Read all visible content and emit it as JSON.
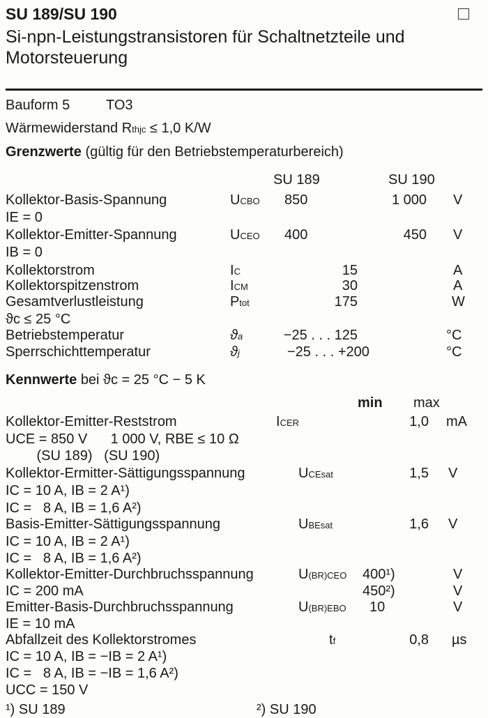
{
  "header": {
    "title": "SU 189/SU 190",
    "subtitle_1": "Si-npn-Leistungstransistoren für Schaltnetzteile und",
    "subtitle_2": "Motorsteuerung"
  },
  "intro": {
    "bauform": "Bauform 5",
    "package": "TO3",
    "thermal_label": "Wärmewiderstand R",
    "thermal_sub": "thjc",
    "thermal_value": "≤ 1,0 K/W"
  },
  "limits": {
    "heading": "Grenzwerte",
    "heading_note": "(gültig für den Betriebstemperaturbereich)",
    "col_su189": "SU 189",
    "col_su190": "SU 190",
    "rows": [
      {
        "name": "Kollektor-Basis-Spannung",
        "cond": "IE = 0",
        "sym": "U",
        "sub": "CBO",
        "v189": "850",
        "v190": "1 000",
        "unit": "V"
      },
      {
        "name": "Kollektor-Emitter-Spannung",
        "cond": "IB = 0",
        "sym": "U",
        "sub": "CEO",
        "v189": "400",
        "v190": "450",
        "unit": "V"
      },
      {
        "name": "Kollektorstrom",
        "sym": "I",
        "sub": "C",
        "value": "15",
        "unit": "A"
      },
      {
        "name": "Kollektorspitzenstrom",
        "sym": "I",
        "sub": "CM",
        "value": "30",
        "unit": "A"
      },
      {
        "name": "Gesamtverlustleistung",
        "cond": "ϑc ≤ 25 °C",
        "sym": "P",
        "sub": "tot",
        "value": "175",
        "unit": "W"
      },
      {
        "name": "Betriebstemperatur",
        "sym": "ϑ",
        "sub": "a",
        "value": "−25 . . . 125",
        "unit": "°C"
      },
      {
        "name": "Sperrschichttemperatur",
        "sym": "ϑ",
        "sub": "j",
        "value": "−25 . . . +200",
        "unit": "°C"
      }
    ]
  },
  "characteristics": {
    "heading": "Kennwerte",
    "heading_note": "bei ϑc = 25 °C − 5 K",
    "col_min": "min",
    "col_max": "max",
    "rows": [
      {
        "name": "Kollektor-Emitter-Reststrom",
        "sym": "I",
        "sub": "CER",
        "max": "1,0",
        "unit": "mA",
        "cond": [
          "UCE = 850 V      1 000 V, RBE ≤ 10 Ω",
          "        (SU 189)   (SU 190)"
        ]
      },
      {
        "name": "Kollektor-Ermitter-Sättigungsspannung",
        "sym": "U",
        "sub": "CEsat",
        "max": "1,5",
        "unit": "V",
        "cond": [
          "IC = 10 A, IB = 2 A¹)",
          "IC =   8 A, IB = 1,6 A²)"
        ]
      },
      {
        "name": "Basis-Emitter-Sättigungsspannung",
        "sym": "U",
        "sub": "BEsat",
        "max": "1,6",
        "unit": "V",
        "cond": [
          "IC = 10 A, IB = 2 A¹)",
          "IC =   8 A, IB = 1,6 A²)"
        ]
      },
      {
        "name": "Kollektor-Emitter-Durchbruchsspannung",
        "sym": "U",
        "sub": "(BR)CEO",
        "min": "400¹)",
        "min2": "450²)",
        "unit": "V",
        "cond": [
          "IC = 200 mA"
        ]
      },
      {
        "name": "Emitter-Basis-Durchbruchsspannung",
        "sym": "U",
        "sub": "(BR)EBO",
        "min": "10",
        "unit": "V",
        "cond": [
          "IE = 10 mA"
        ]
      },
      {
        "name": "Abfallzeit des Kollektorstromes",
        "sym": "t",
        "sub": "f",
        "max": "0,8",
        "unit": "µs",
        "cond": [
          "IC = 10 A, IB = −IB = 2 A¹)",
          "IC =   8 A, IB = −IB = 1,6 A²)",
          "UCC = 150 V"
        ]
      }
    ]
  },
  "footnotes": [
    "¹) SU 189",
    "²) SU 190"
  ]
}
